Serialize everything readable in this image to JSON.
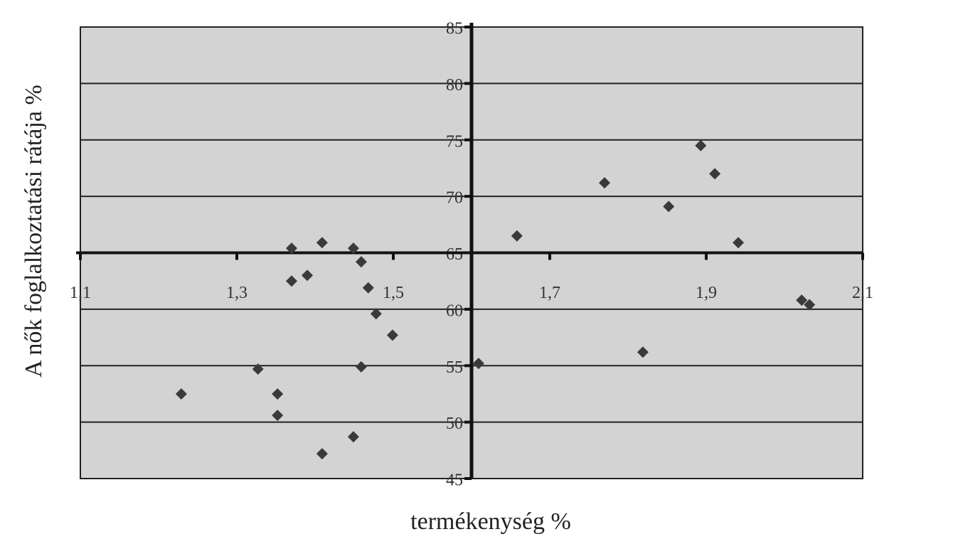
{
  "chart_data": {
    "type": "scatter",
    "x_label": "termékenység %",
    "y_label": "A nők foglalkoztatási rátája %",
    "x": [
      1.229,
      1.327,
      1.352,
      1.352,
      1.37,
      1.37,
      1.39,
      1.409,
      1.409,
      1.449,
      1.449,
      1.459,
      1.459,
      1.468,
      1.478,
      1.499,
      1.609,
      1.658,
      1.77,
      1.819,
      1.852,
      1.893,
      1.911,
      1.941,
      2.022,
      2.032
    ],
    "values": [
      52.5,
      54.7,
      52.5,
      50.6,
      65.4,
      62.5,
      63.0,
      65.9,
      47.2,
      65.4,
      48.7,
      64.2,
      54.9,
      61.9,
      59.6,
      57.7,
      55.2,
      66.5,
      71.2,
      56.2,
      69.1,
      74.5,
      72.0,
      65.9,
      60.8,
      60.4
    ],
    "color": "#3a3a3a",
    "xlim": [
      1.1,
      2.1
    ],
    "xticks": [
      {
        "value": 1.1,
        "label": "1,1"
      },
      {
        "value": 1.3,
        "label": "1,3"
      },
      {
        "value": 1.5,
        "label": "1,5"
      },
      {
        "value": 1.7,
        "label": "1,7"
      },
      {
        "value": 1.9,
        "label": "1,9"
      },
      {
        "value": 2.1,
        "label": "2,1"
      }
    ],
    "ylim": [
      45,
      85
    ],
    "yticks": [
      45,
      50,
      55,
      60,
      65,
      70,
      75,
      80,
      85
    ],
    "x_axis_crosses": 65,
    "y_axis_crosses": 1.6,
    "grid": true
  }
}
